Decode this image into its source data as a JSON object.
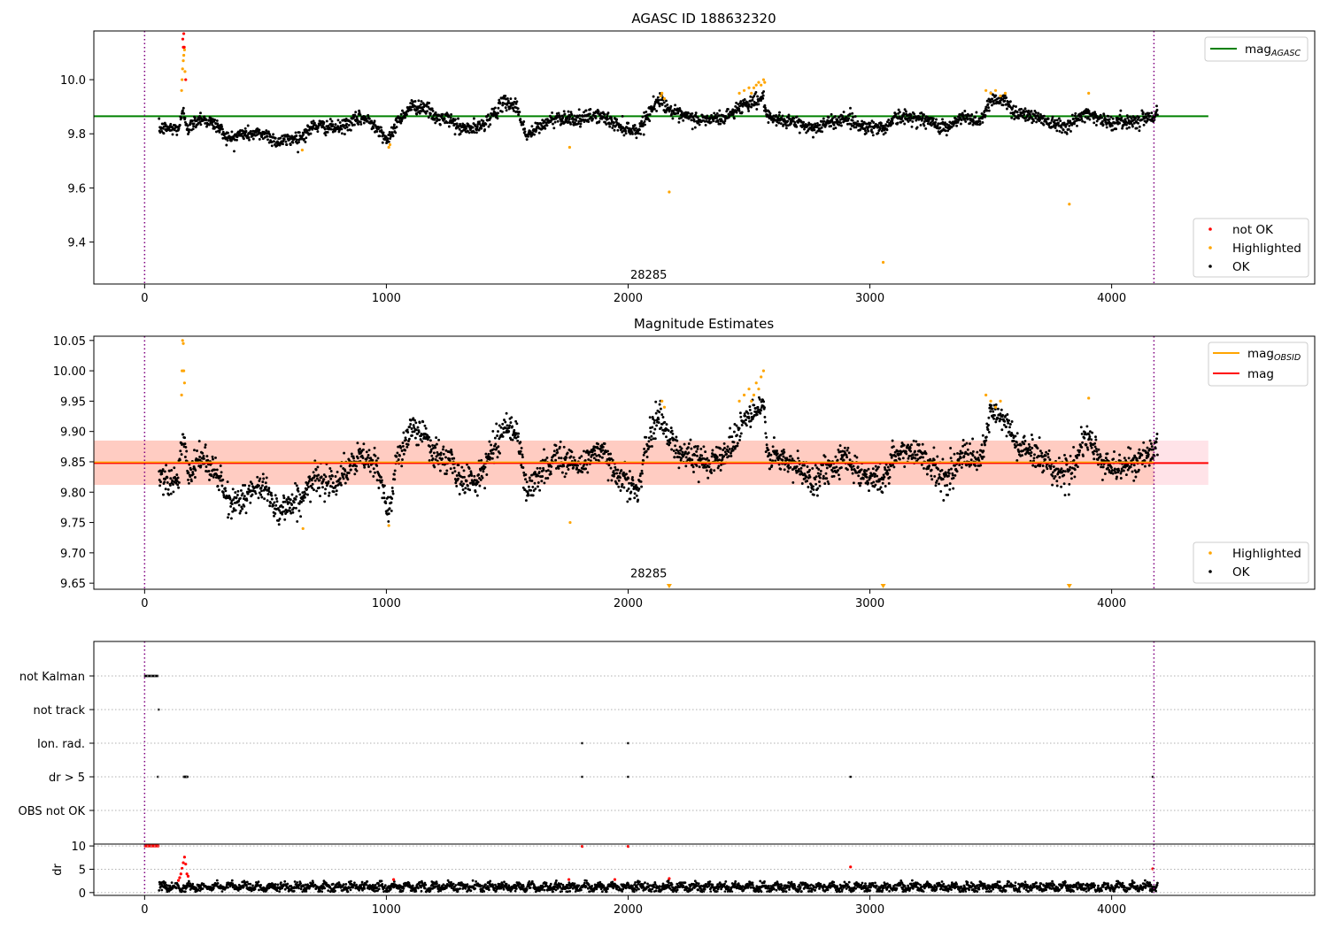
{
  "chart_data": [
    {
      "type": "scatter",
      "title": "AGASC ID 188632320",
      "xlim": [
        -210,
        4840
      ],
      "ylim": [
        9.245,
        10.18
      ],
      "xticks": [
        0,
        1000,
        2000,
        3000,
        4000
      ],
      "yticks": [
        9.4,
        9.6,
        9.8,
        10.0
      ],
      "ytick_labels": [
        "9.4",
        "9.6",
        "9.8",
        "10.0"
      ],
      "obs_boundaries": [
        0,
        4175
      ],
      "reference_line": {
        "label_main": "mag",
        "label_sub": "AGASC",
        "value": 9.865,
        "x_range": [
          -210,
          4400
        ],
        "color": "#008000"
      },
      "annotation": {
        "text": "28285",
        "x": 2085,
        "y": 9.265
      },
      "legend_lines_position": "upper-right",
      "legend_points_position": "lower-right",
      "series": [
        {
          "name": "not OK",
          "color": "#ff0000",
          "x": [
            158,
            160,
            162,
            164,
            170
          ],
          "y": [
            10.15,
            10.12,
            10.17,
            10.12,
            10.0
          ]
        },
        {
          "name": "Highlighted",
          "color": "#ffa500",
          "x": [
            153,
            155,
            157,
            160,
            162,
            165,
            167,
            652,
            1010,
            1015,
            1758,
            2170,
            2135,
            2140,
            2150,
            2460,
            2480,
            2500,
            2510,
            2520,
            2530,
            2540,
            2550,
            2560,
            2565,
            3055,
            3480,
            3500,
            3520,
            3540,
            3560,
            3825,
            3905
          ],
          "y": [
            9.96,
            10.0,
            10.04,
            10.07,
            10.09,
            10.11,
            10.03,
            9.74,
            9.75,
            9.76,
            9.75,
            9.585,
            9.94,
            9.95,
            9.93,
            9.95,
            9.96,
            9.97,
            9.95,
            9.97,
            9.98,
            9.99,
            9.98,
            10.0,
            9.99,
            9.325,
            9.96,
            9.95,
            9.96,
            9.94,
            9.95,
            9.54,
            9.95
          ]
        },
        {
          "name": "OK",
          "color": "#000000",
          "x": [
            60,
            4190
          ],
          "trend": [
            [
              60,
              9.82
            ],
            [
              140,
              9.82
            ],
            [
              160,
              9.88
            ],
            [
              180,
              9.82
            ],
            [
              230,
              9.86
            ],
            [
              300,
              9.83
            ],
            [
              350,
              9.78
            ],
            [
              400,
              9.8
            ],
            [
              500,
              9.8
            ],
            [
              550,
              9.77
            ],
            [
              650,
              9.79
            ],
            [
              700,
              9.83
            ],
            [
              800,
              9.82
            ],
            [
              900,
              9.86
            ],
            [
              960,
              9.83
            ],
            [
              1010,
              9.77
            ],
            [
              1040,
              9.84
            ],
            [
              1100,
              9.9
            ],
            [
              1160,
              9.9
            ],
            [
              1200,
              9.86
            ],
            [
              1270,
              9.85
            ],
            [
              1300,
              9.82
            ],
            [
              1380,
              9.82
            ],
            [
              1440,
              9.87
            ],
            [
              1490,
              9.92
            ],
            [
              1540,
              9.9
            ],
            [
              1580,
              9.79
            ],
            [
              1640,
              9.83
            ],
            [
              1700,
              9.86
            ],
            [
              1760,
              9.86
            ],
            [
              1800,
              9.85
            ],
            [
              1860,
              9.87
            ],
            [
              1900,
              9.86
            ],
            [
              1960,
              9.83
            ],
            [
              2040,
              9.81
            ],
            [
              2080,
              9.87
            ],
            [
              2130,
              9.93
            ],
            [
              2160,
              9.9
            ],
            [
              2200,
              9.87
            ],
            [
              2300,
              9.85
            ],
            [
              2400,
              9.86
            ],
            [
              2480,
              9.91
            ],
            [
              2560,
              9.93
            ],
            [
              2580,
              9.85
            ],
            [
              2650,
              9.85
            ],
            [
              2700,
              9.84
            ],
            [
              2760,
              9.82
            ],
            [
              2900,
              9.86
            ],
            [
              2960,
              9.83
            ],
            [
              3060,
              9.82
            ],
            [
              3100,
              9.86
            ],
            [
              3200,
              9.86
            ],
            [
              3260,
              9.84
            ],
            [
              3320,
              9.82
            ],
            [
              3380,
              9.86
            ],
            [
              3460,
              9.85
            ],
            [
              3500,
              9.93
            ],
            [
              3560,
              9.92
            ],
            [
              3600,
              9.88
            ],
            [
              3700,
              9.86
            ],
            [
              3760,
              9.84
            ],
            [
              3820,
              9.83
            ],
            [
              3900,
              9.88
            ],
            [
              3960,
              9.85
            ],
            [
              4000,
              9.84
            ],
            [
              4100,
              9.85
            ],
            [
              4190,
              9.87
            ]
          ]
        }
      ],
      "legend_lines": [
        {
          "label_main": "mag",
          "label_sub": "AGASC",
          "color": "#008000"
        }
      ],
      "legend_points": [
        {
          "label": "not OK",
          "color": "#ff0000"
        },
        {
          "label": "Highlighted",
          "color": "#ffa500"
        },
        {
          "label": "OK",
          "color": "#000000"
        }
      ]
    },
    {
      "type": "scatter",
      "title": "Magnitude Estimates",
      "xlim": [
        -210,
        4840
      ],
      "ylim": [
        9.64,
        10.057
      ],
      "xticks": [
        0,
        1000,
        2000,
        3000,
        4000
      ],
      "yticks": [
        9.65,
        9.7,
        9.75,
        9.8,
        9.85,
        9.9,
        9.95,
        10.0,
        10.05
      ],
      "ytick_labels": [
        "9.65",
        "9.70",
        "9.75",
        "9.80",
        "9.85",
        "9.90",
        "9.95",
        "10.00",
        "10.05"
      ],
      "obs_boundaries": [
        0,
        4175
      ],
      "mean_line": {
        "label": "mag",
        "value": 9.848,
        "x_range": [
          -210,
          4400
        ],
        "color": "#ff0000"
      },
      "band_obsid": {
        "lo": 9.812,
        "hi": 9.885,
        "x_range": [
          -210,
          4175
        ],
        "color": "#ffa07a"
      },
      "band_mag": {
        "lo": 9.812,
        "hi": 9.885,
        "x_range": [
          -210,
          4400
        ],
        "color": "#ffc0cb"
      },
      "annotation": {
        "text": "28285",
        "x": 2085,
        "y": 9.66
      },
      "out_of_range_markers_x": [
        2170,
        3055,
        3825
      ],
      "legend_lines_position": "upper-right",
      "legend_points_position": "lower-right",
      "series": [
        {
          "name": "Highlighted",
          "color": "#ffa500",
          "x": [
            153,
            155,
            157,
            160,
            162,
            165,
            655,
            1010,
            1760,
            2140,
            2150,
            2460,
            2480,
            2500,
            2510,
            2520,
            2530,
            2540,
            2550,
            2560,
            3480,
            3500,
            3520,
            3540,
            3905
          ],
          "y": [
            9.96,
            10.0,
            10.05,
            10.045,
            10.0,
            9.98,
            9.74,
            9.745,
            9.75,
            9.95,
            9.94,
            9.95,
            9.96,
            9.97,
            9.95,
            9.96,
            9.98,
            9.97,
            9.99,
            10.0,
            9.96,
            9.95,
            9.94,
            9.95,
            9.955
          ]
        },
        {
          "name": "OK",
          "color": "#000000",
          "x": [
            60,
            4190
          ],
          "trend": [
            [
              60,
              9.83
            ],
            [
              140,
              9.82
            ],
            [
              160,
              9.9
            ],
            [
              180,
              9.82
            ],
            [
              230,
              9.86
            ],
            [
              300,
              9.83
            ],
            [
              350,
              9.78
            ],
            [
              400,
              9.79
            ],
            [
              500,
              9.81
            ],
            [
              550,
              9.77
            ],
            [
              650,
              9.79
            ],
            [
              700,
              9.82
            ],
            [
              800,
              9.82
            ],
            [
              900,
              9.86
            ],
            [
              960,
              9.84
            ],
            [
              1010,
              9.77
            ],
            [
              1040,
              9.85
            ],
            [
              1100,
              9.9
            ],
            [
              1160,
              9.9
            ],
            [
              1200,
              9.86
            ],
            [
              1270,
              9.85
            ],
            [
              1300,
              9.82
            ],
            [
              1380,
              9.82
            ],
            [
              1440,
              9.87
            ],
            [
              1490,
              9.91
            ],
            [
              1540,
              9.9
            ],
            [
              1580,
              9.8
            ],
            [
              1640,
              9.83
            ],
            [
              1700,
              9.86
            ],
            [
              1760,
              9.85
            ],
            [
              1800,
              9.84
            ],
            [
              1860,
              9.87
            ],
            [
              1900,
              9.86
            ],
            [
              1960,
              9.83
            ],
            [
              2040,
              9.8
            ],
            [
              2080,
              9.88
            ],
            [
              2130,
              9.93
            ],
            [
              2160,
              9.9
            ],
            [
              2200,
              9.87
            ],
            [
              2300,
              9.85
            ],
            [
              2400,
              9.86
            ],
            [
              2480,
              9.92
            ],
            [
              2560,
              9.94
            ],
            [
              2580,
              9.86
            ],
            [
              2650,
              9.85
            ],
            [
              2700,
              9.84
            ],
            [
              2760,
              9.82
            ],
            [
              2900,
              9.86
            ],
            [
              2960,
              9.83
            ],
            [
              3060,
              9.82
            ],
            [
              3100,
              9.86
            ],
            [
              3200,
              9.87
            ],
            [
              3260,
              9.84
            ],
            [
              3320,
              9.82
            ],
            [
              3380,
              9.86
            ],
            [
              3460,
              9.85
            ],
            [
              3500,
              9.93
            ],
            [
              3560,
              9.92
            ],
            [
              3600,
              9.88
            ],
            [
              3700,
              9.86
            ],
            [
              3760,
              9.84
            ],
            [
              3820,
              9.83
            ],
            [
              3900,
              9.89
            ],
            [
              3960,
              9.85
            ],
            [
              4000,
              9.84
            ],
            [
              4100,
              9.85
            ],
            [
              4190,
              9.87
            ]
          ]
        }
      ],
      "legend_lines": [
        {
          "label_main": "mag",
          "label_sub": "OBSID",
          "color": "#ffa500"
        },
        {
          "label_main": "mag",
          "label_sub": "",
          "color": "#ff0000"
        }
      ],
      "legend_points": [
        {
          "label": "Highlighted",
          "color": "#ffa500"
        },
        {
          "label": "OK",
          "color": "#000000"
        }
      ]
    },
    {
      "type": "scatter",
      "title": "",
      "xlim": [
        -210,
        4840
      ],
      "obs_boundaries": [
        0,
        4175
      ],
      "categories": [
        "not Kalman",
        "not track",
        "Ion. rad.",
        "dr > 5",
        "OBS not OK"
      ],
      "flags": {
        "not Kalman": [
          2,
          6,
          10,
          14,
          18,
          22,
          26,
          30,
          34,
          38,
          42,
          46,
          50,
          54
        ],
        "not track": [
          58
        ],
        "Ion. rad.": [
          1810,
          2000
        ],
        "dr > 5": [
          55,
          162,
          165,
          168,
          171,
          174,
          177,
          1810,
          2000,
          2920,
          4170
        ],
        "OBS not OK": []
      }
    },
    {
      "type": "scatter",
      "title": "",
      "xlim": [
        -210,
        4840
      ],
      "ylim": [
        -0.6,
        10.4
      ],
      "xticks": [
        0,
        1000,
        2000,
        3000,
        4000
      ],
      "yticks": [
        0,
        5,
        10
      ],
      "ytick_labels": [
        "0",
        "5",
        "10"
      ],
      "ylabel": "dr",
      "obs_boundaries": [
        0,
        4175
      ],
      "series": [
        {
          "name": "not OK",
          "color": "#ff0000",
          "x": [
            2,
            8,
            14,
            20,
            26,
            32,
            38,
            44,
            50,
            56,
            140,
            145,
            150,
            155,
            160,
            165,
            170,
            175,
            180,
            1030,
            1755,
            1810,
            1945,
            2000,
            2170,
            2920,
            4170
          ],
          "y": [
            10,
            10,
            10,
            10,
            10,
            10,
            10,
            10,
            10,
            10,
            2.6,
            3.2,
            4.0,
            5.2,
            6.4,
            7.6,
            6.1,
            4.0,
            3.5,
            2.8,
            2.8,
            9.9,
            2.8,
            9.9,
            3.0,
            5.5,
            5.1
          ]
        },
        {
          "name": "OK",
          "color": "#000000",
          "x": [
            60,
            4190
          ],
          "y_range": [
            0.2,
            2.6
          ]
        }
      ]
    }
  ]
}
